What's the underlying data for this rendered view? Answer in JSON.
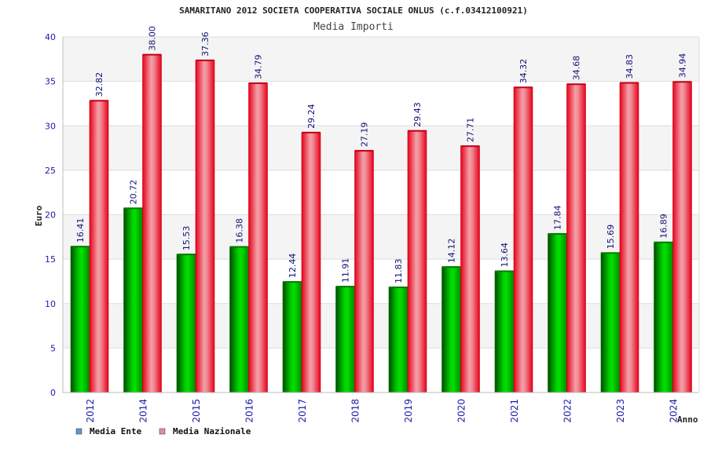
{
  "chart_data": {
    "type": "bar",
    "title": "SAMARITANO 2012 SOCIETA COOPERATIVA SOCIALE ONLUS (c.f.03412100921)",
    "subtitle": "Media Importi",
    "xlabel": "Anno",
    "ylabel": "Euro",
    "ylim": [
      0,
      40
    ],
    "yticks": [
      "0",
      "5",
      "10",
      "15",
      "20",
      "25",
      "30",
      "35",
      "40"
    ],
    "grid": true,
    "legend_position": "bottom-left",
    "categories": [
      "2012",
      "2014",
      "2015",
      "2016",
      "2017",
      "2018",
      "2019",
      "2020",
      "2021",
      "2022",
      "2023",
      "2024"
    ],
    "series": [
      {
        "name": "Media Ente",
        "color": "#00a000",
        "legend_color": "#5b9bd5",
        "values": [
          16.41,
          20.72,
          15.53,
          16.38,
          12.44,
          11.91,
          11.83,
          14.12,
          13.64,
          17.84,
          15.69,
          16.89
        ],
        "labels": [
          "16.41",
          "20.72",
          "15.53",
          "16.38",
          "12.44",
          "11.91",
          "11.83",
          "14.12",
          "13.64",
          "17.84",
          "15.69",
          "16.89"
        ]
      },
      {
        "name": "Media Nazionale",
        "color": "#e8001a",
        "legend_color": "#e88aa0",
        "values": [
          32.82,
          38.0,
          37.36,
          34.79,
          29.24,
          27.19,
          29.43,
          27.71,
          34.32,
          34.68,
          34.83,
          34.94
        ],
        "labels": [
          "32.82",
          "38.00",
          "37.36",
          "34.79",
          "29.24",
          "27.19",
          "29.43",
          "27.71",
          "34.32",
          "34.68",
          "34.83",
          "34.94"
        ]
      }
    ]
  }
}
